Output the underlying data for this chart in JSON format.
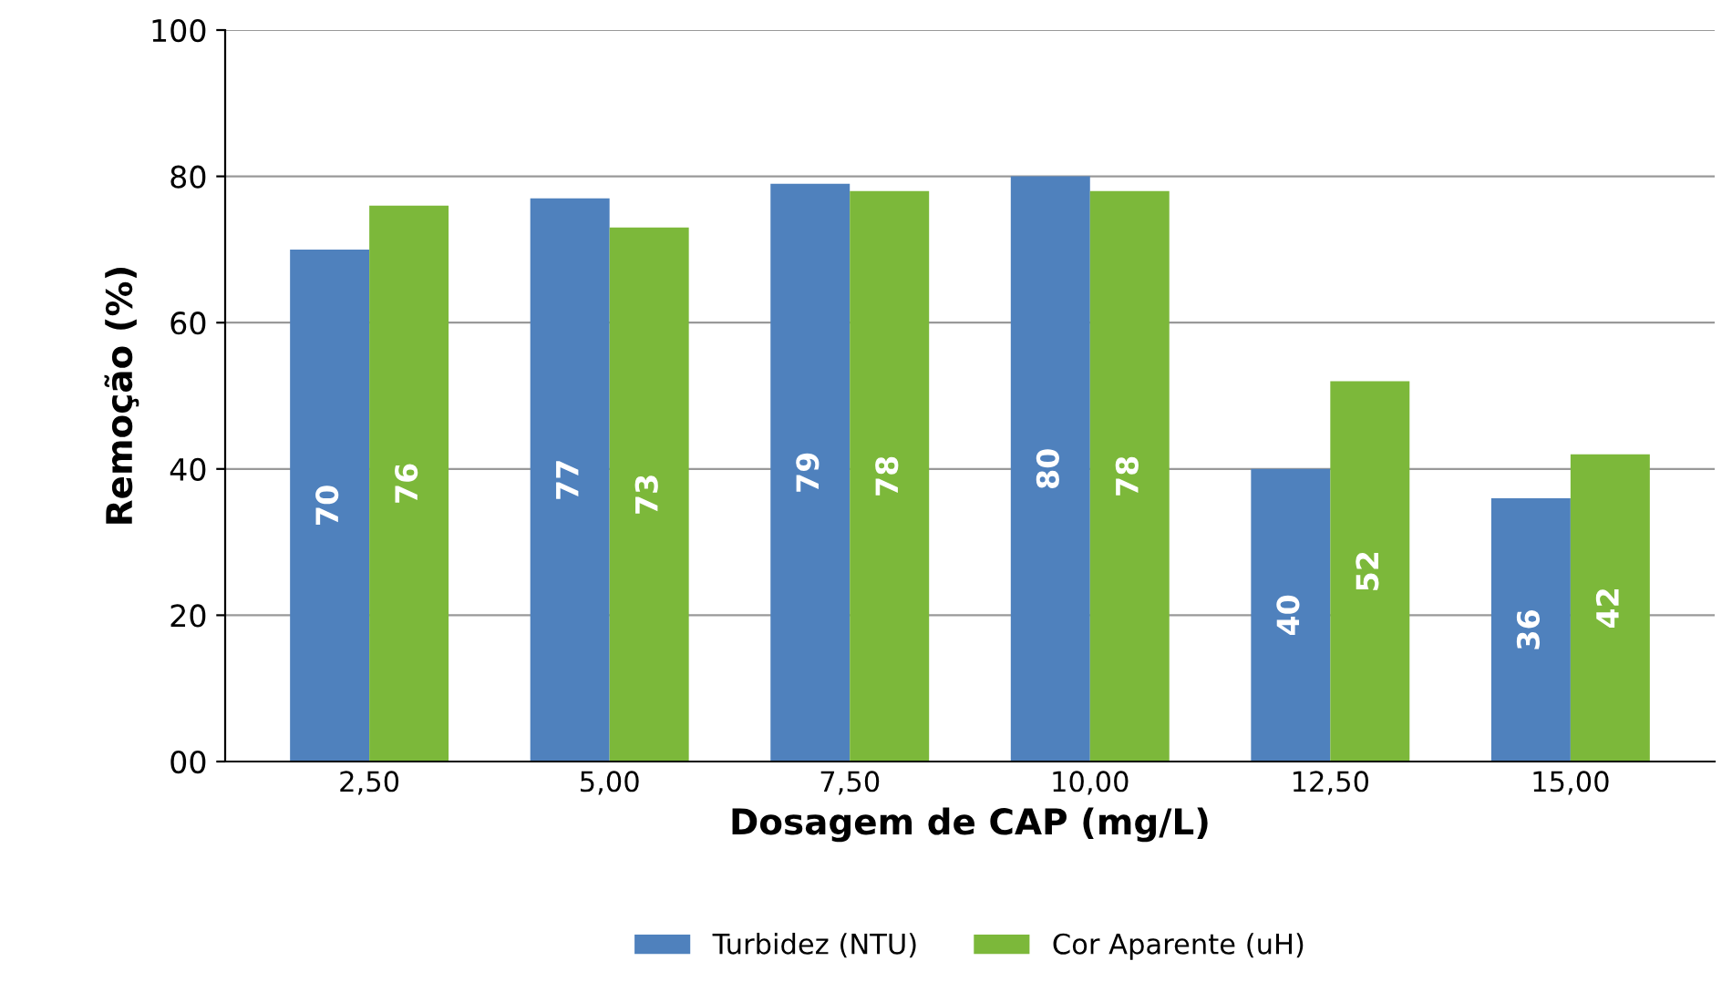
{
  "chart_data": {
    "type": "bar",
    "xlabel": "Dosagem de CAP (mg/L)",
    "ylabel": "Remoção (%)",
    "categories": [
      "2,50",
      "5,00",
      "7,50",
      "10,00",
      "12,50",
      "15,00"
    ],
    "series": [
      {
        "name": "Turbidez (NTU)",
        "color": "#4f81bd",
        "values": [
          70,
          77,
          79,
          80,
          40,
          36
        ]
      },
      {
        "name": "Cor Aparente (uH)",
        "color": "#7cb83a",
        "values": [
          76,
          73,
          78,
          78,
          52,
          42
        ]
      }
    ],
    "ylim": [
      0,
      100
    ],
    "yticks": [
      {
        "value": 0,
        "label": "00"
      },
      20,
      40,
      60,
      80,
      100
    ],
    "grid": "y",
    "legend": "bottom",
    "data_labels": true
  }
}
